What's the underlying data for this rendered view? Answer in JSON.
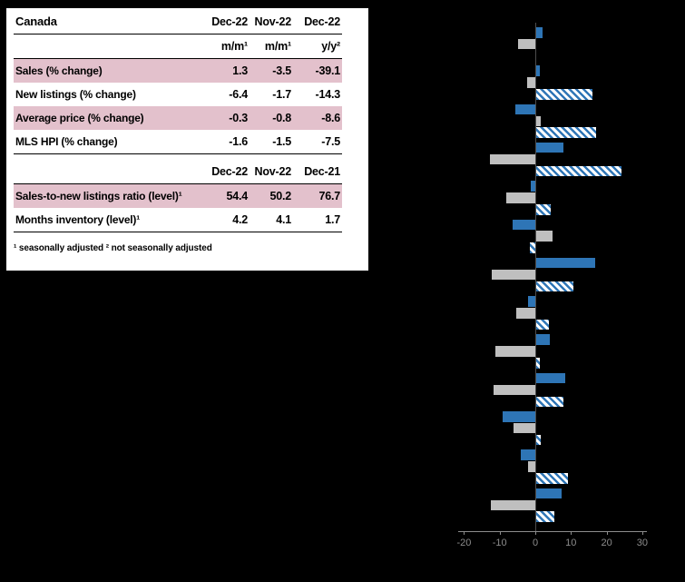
{
  "table": {
    "title": "Canada",
    "header_cols": [
      "Dec-22",
      "Nov-22",
      "Dec-22"
    ],
    "subheader_cols": [
      "m/m¹",
      "m/m¹",
      "y/y²"
    ],
    "rows_pct": [
      {
        "label": "Sales (% change)",
        "values": [
          "1.3",
          "-3.5",
          "-39.1"
        ]
      },
      {
        "label": "New listings (% change)",
        "values": [
          "-6.4",
          "-1.7",
          "-14.3"
        ]
      },
      {
        "label": "Average price (% change)",
        "values": [
          "-0.3",
          "-0.8",
          "-8.6"
        ]
      },
      {
        "label": "MLS HPI (% change)",
        "values": [
          "-1.6",
          "-1.5",
          "-7.5"
        ]
      }
    ],
    "header2_cols": [
      "Dec-22",
      "Nov-22",
      "Dec-21"
    ],
    "rows_level": [
      {
        "label": "Sales-to-new listings ratio (level)¹",
        "values": [
          "54.4",
          "50.2",
          "76.7"
        ]
      },
      {
        "label": "Months inventory (level)¹",
        "values": [
          "4.2",
          "4.1",
          "1.7"
        ]
      }
    ],
    "footnote": "¹ seasonally adjusted   ² not seasonally adjusted",
    "pink_row_color": "#e3c1cc"
  },
  "chart_data": {
    "type": "bar",
    "orientation": "horizontal",
    "title": "",
    "xlabel": "",
    "x_ticks": [
      -20,
      -10,
      0,
      10,
      20,
      30
    ],
    "xlim": [
      -21.5,
      31.5
    ],
    "grid": false,
    "background": "#000000",
    "axis_color": "#8c8c8c",
    "categories": [
      "",
      "",
      "",
      "",
      "",
      "",
      "",
      "",
      "",
      "",
      "",
      "",
      ""
    ],
    "series": [
      {
        "name": "blue-solid",
        "color": "#2e75b6",
        "style": "solid",
        "values": [
          1.8,
          1.0,
          -5.6,
          7.6,
          -1.2,
          -6.4,
          16.5,
          -2.1,
          3.8,
          8.1,
          -9.2,
          -4.1,
          7.1
        ]
      },
      {
        "name": "grey-solid",
        "color": "#bfbfbf",
        "style": "solid",
        "values": [
          -4.8,
          -2.3,
          1.2,
          -12.7,
          -8.1,
          4.6,
          -12.2,
          -5.3,
          -11.2,
          -11.6,
          -6.1,
          -2.0,
          -12.4
        ]
      },
      {
        "name": "blue-hatched",
        "color": "#2e75b6",
        "style": "hatched",
        "values": [
          0,
          15.8,
          16.8,
          23.9,
          4.1,
          -1.5,
          10.4,
          3.6,
          1.0,
          7.6,
          1.3,
          8.9,
          5.1
        ]
      }
    ]
  }
}
